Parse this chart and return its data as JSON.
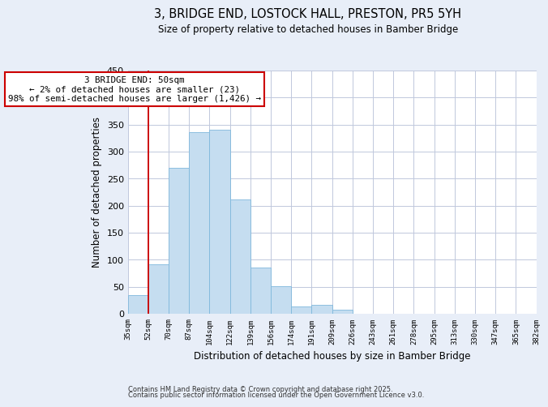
{
  "title": "3, BRIDGE END, LOSTOCK HALL, PRESTON, PR5 5YH",
  "subtitle": "Size of property relative to detached houses in Bamber Bridge",
  "xlabel": "Distribution of detached houses by size in Bamber Bridge",
  "ylabel": "Number of detached properties",
  "bar_values": [
    35,
    91,
    270,
    336,
    341,
    212,
    85,
    51,
    13,
    16,
    8,
    0,
    0,
    0,
    0,
    0,
    0,
    0,
    0,
    0
  ],
  "bar_labels": [
    "35sqm",
    "52sqm",
    "70sqm",
    "87sqm",
    "104sqm",
    "122sqm",
    "139sqm",
    "156sqm",
    "174sqm",
    "191sqm",
    "209sqm",
    "226sqm",
    "243sqm",
    "261sqm",
    "278sqm",
    "295sqm",
    "313sqm",
    "330sqm",
    "347sqm",
    "365sqm",
    "382sqm"
  ],
  "bar_color": "#c5ddf0",
  "bar_edge_color": "#7fb8dc",
  "ylim": [
    0,
    450
  ],
  "yticks": [
    0,
    50,
    100,
    150,
    200,
    250,
    300,
    350,
    400,
    450
  ],
  "property_line_x": 1,
  "property_line_color": "#cc0000",
  "annotation_title": "3 BRIDGE END: 50sqm",
  "annotation_line1": "← 2% of detached houses are smaller (23)",
  "annotation_line2": "98% of semi-detached houses are larger (1,426) →",
  "annotation_box_edge": "#cc0000",
  "footer1": "Contains HM Land Registry data © Crown copyright and database right 2025.",
  "footer2": "Contains public sector information licensed under the Open Government Licence v3.0.",
  "background_color": "#e8eef8",
  "plot_bg_color": "#ffffff",
  "grid_color": "#c0c8dc"
}
